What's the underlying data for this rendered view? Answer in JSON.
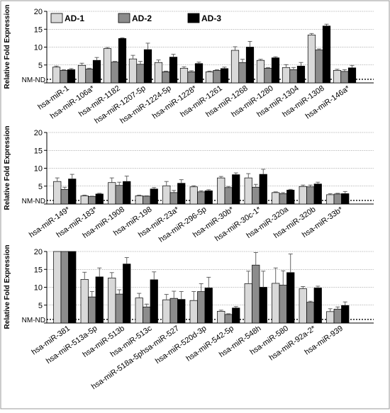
{
  "legend": {
    "items": [
      {
        "label": "AD-1",
        "color": "#d9d9d9"
      },
      {
        "label": "AD-2",
        "color": "#8c8c8c"
      },
      {
        "label": "AD-3",
        "color": "#000000"
      }
    ]
  },
  "ylabel": "Relative Fold Expression",
  "nm_nd_label": "NM-ND",
  "chart_data": [
    {
      "type": "bar",
      "ylim": [
        0,
        20
      ],
      "yticks": [
        0,
        5,
        10,
        15,
        20
      ],
      "ylabel": "Relative Fold Expression",
      "nm_nd_label": "NM-ND",
      "categories": [
        "hsa-miR-1",
        "hsa-miR-106a*",
        "hsa-miR-1182",
        "hsa-miR-1207-5p",
        "hsa-miR-1224-5p",
        "hsa-miR-1228*",
        "hsa-miR-1261",
        "hsa-miR-1268",
        "hsa-miR-1280",
        "hsa-miR-1304",
        "hsa-miR-1308",
        "hsa-miR-146a*"
      ],
      "series": [
        {
          "name": "AD-1",
          "color": "#d9d9d9",
          "values": [
            4.4,
            4.9,
            9.6,
            6.7,
            5.7,
            4.1,
            3.1,
            9.1,
            6.3,
            4.3,
            13.4,
            3.5
          ],
          "errors": [
            0.3,
            0.6,
            0.3,
            1.0,
            0.7,
            0.4,
            0.2,
            1.0,
            0.3,
            0.8,
            0.4,
            0.3
          ]
        },
        {
          "name": "AD-2",
          "color": "#8c8c8c",
          "values": [
            3.5,
            3.9,
            5.8,
            5.2,
            3.1,
            3.1,
            3.5,
            5.7,
            4.1,
            3.7,
            9.2,
            3.2
          ],
          "errors": [
            0.2,
            0.2,
            0.2,
            0.8,
            0.2,
            0.3,
            0.2,
            0.9,
            0.2,
            0.6,
            0.3,
            0.5
          ]
        },
        {
          "name": "AD-3",
          "color": "#000000",
          "values": [
            3.7,
            6.3,
            12.4,
            9.3,
            7.2,
            5.4,
            4.0,
            10.0,
            7.0,
            4.7,
            15.9,
            4.2
          ],
          "errors": [
            0.3,
            0.8,
            0.2,
            1.8,
            0.8,
            0.4,
            0.4,
            1.6,
            0.3,
            1.0,
            0.5,
            0.7
          ]
        }
      ]
    },
    {
      "type": "bar",
      "ylim": [
        0,
        20
      ],
      "yticks": [
        0,
        5,
        10,
        15,
        20
      ],
      "ylabel": "Relative Fold Expression",
      "nm_nd_label": "NM-ND",
      "categories": [
        "hsa-miR-149*",
        "hsa-miR-183*",
        "hsa-miR-1908",
        "hsa-miR-198",
        "hsa-miR-23a*",
        "hsa-miR-296-5p",
        "hsa-miR-30b*",
        "hsa-miR-30c-1*",
        "hsa-miR-320a",
        "hsa-miR-320b",
        "hsa-miR-33b*"
      ],
      "series": [
        {
          "name": "AD-1",
          "color": "#d9d9d9",
          "values": [
            6.3,
            2.3,
            6.0,
            2.3,
            5.1,
            4.8,
            7.3,
            7.3,
            3.2,
            4.9,
            2.6
          ],
          "errors": [
            1.0,
            0.2,
            1.3,
            0.2,
            1.2,
            0.3,
            0.4,
            1.2,
            0.2,
            0.4,
            0.3
          ]
        },
        {
          "name": "AD-2",
          "color": "#8c8c8c",
          "values": [
            4.1,
            2.1,
            5.2,
            2.2,
            3.2,
            3.4,
            4.6,
            4.7,
            2.9,
            4.8,
            2.8
          ],
          "errors": [
            0.6,
            0.1,
            0.9,
            0.1,
            0.6,
            0.3,
            0.3,
            0.8,
            0.3,
            0.5,
            0.2
          ]
        },
        {
          "name": "AD-3",
          "color": "#000000",
          "values": [
            7.0,
            2.8,
            6.3,
            4.2,
            5.8,
            3.7,
            8.2,
            8.3,
            3.9,
            5.6,
            2.9
          ],
          "errors": [
            1.3,
            0.2,
            1.5,
            0.4,
            1.0,
            0.3,
            0.5,
            1.4,
            0.2,
            0.5,
            0.6
          ]
        }
      ]
    },
    {
      "type": "bar",
      "ylim": [
        0,
        20
      ],
      "yticks": [
        0,
        5,
        10,
        15,
        20
      ],
      "ylabel": "Relative Fold Expression",
      "nm_nd_label": "NM-ND",
      "categories": [
        "hsa-miR-381",
        "hsa-miR-513a-5p",
        "hsa-miR-513b",
        "hsa-miR-513c",
        "hsa-miR-518a-5phsa-miR-527",
        "hsa-miR-520d-3p",
        "hsa-miR-542-5p",
        "hsa-miR-548h",
        "hsa-miR-580",
        "hsa-miR-92a-2*",
        "hsa-miR-939"
      ],
      "series": [
        {
          "name": "AD-1",
          "color": "#d9d9d9",
          "values": [
            20,
            12.2,
            12.6,
            7.0,
            6.5,
            6.3,
            3.3,
            11.0,
            11.1,
            9.6,
            3.2
          ],
          "errors": [
            0,
            2.0,
            1.5,
            1.3,
            1.5,
            2.5,
            0.3,
            3.5,
            4.3,
            0.6,
            0.8
          ]
        },
        {
          "name": "AD-2",
          "color": "#8c8c8c",
          "values": [
            20,
            7.3,
            8.1,
            4.5,
            6.9,
            8.8,
            2.4,
            16.2,
            10.6,
            5.8,
            3.9
          ],
          "errors": [
            0,
            1.5,
            1.2,
            0.8,
            2.0,
            2.2,
            0.2,
            3.5,
            4.0,
            0.3,
            0.6
          ]
        },
        {
          "name": "AD-3",
          "color": "#000000",
          "values": [
            20,
            12.9,
            16.5,
            12.1,
            6.6,
            9.8,
            4.2,
            10.0,
            14.1,
            9.8,
            4.9
          ],
          "errors": [
            0,
            2.5,
            1.8,
            2.2,
            2.2,
            3.0,
            0.4,
            4.5,
            5.2,
            0.5,
            1.0
          ]
        }
      ]
    }
  ]
}
